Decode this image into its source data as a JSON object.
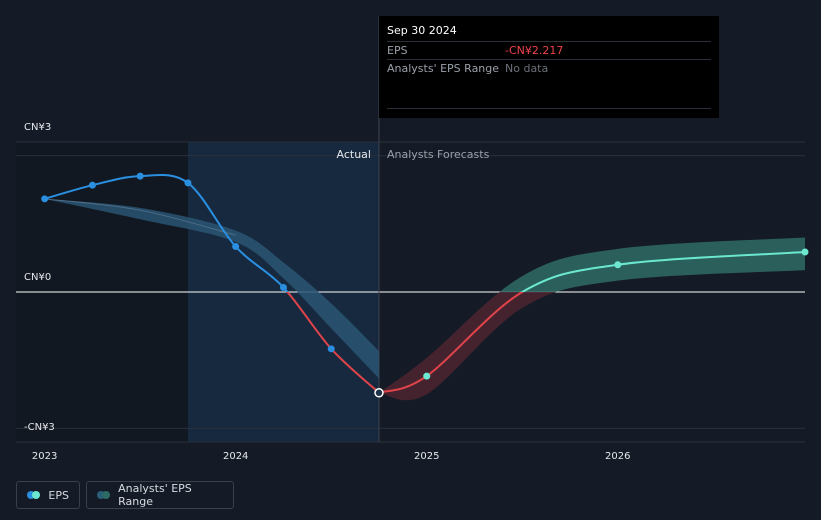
{
  "tooltip": {
    "date": "Sep 30 2024",
    "rows": [
      {
        "label": "EPS",
        "value": "-CN¥2.217"
      },
      {
        "label": "Analysts' EPS Range",
        "value": "No data"
      }
    ]
  },
  "legend": {
    "eps": "EPS",
    "range": "Analysts' EPS Range"
  },
  "colors": {
    "actual": "#2b8fe0",
    "forecast": "#6be8cf",
    "negative": "#e0444a",
    "range_band": "#2c5f6c",
    "background": "#151b26"
  },
  "chart_data": {
    "type": "line",
    "y_axis_labels": [
      "CN¥3",
      "CN¥0",
      "-CN¥3"
    ],
    "y_ticks": [
      3,
      0,
      -3
    ],
    "x_ticks": [
      "2023",
      "2024",
      "2025",
      "2026"
    ],
    "x_tick_values": [
      2023,
      2024,
      2025,
      2026
    ],
    "xlim": [
      2022.85,
      2026.98
    ],
    "ylim": [
      -3.3,
      3.3
    ],
    "section_labels": {
      "actual": "Actual",
      "forecast": "Analysts Forecasts"
    },
    "divider_x": 2024.75,
    "highlight_range": [
      2023.75,
      2024.75
    ],
    "series": [
      {
        "name": "EPS",
        "points": [
          [
            2023.0,
            2.05
          ],
          [
            2023.25,
            2.35
          ],
          [
            2023.5,
            2.55
          ],
          [
            2023.75,
            2.4
          ],
          [
            2024.0,
            1.0
          ],
          [
            2024.25,
            0.1
          ],
          [
            2024.5,
            -1.25
          ],
          [
            2024.75,
            -2.217
          ]
        ]
      },
      {
        "name": "EPS forecast",
        "points": [
          [
            2024.75,
            -2.217
          ],
          [
            2025.0,
            -1.85
          ],
          [
            2025.5,
            0.0
          ],
          [
            2026.0,
            0.6
          ],
          [
            2026.98,
            0.88
          ]
        ]
      },
      {
        "name": "Analysts' EPS Range",
        "upper": [
          [
            2023.0,
            2.05
          ],
          [
            2023.5,
            1.85
          ],
          [
            2024.0,
            1.35
          ],
          [
            2024.25,
            0.65
          ],
          [
            2024.5,
            -0.25
          ],
          [
            2024.75,
            -1.3
          ]
        ],
        "lower": [
          [
            2023.0,
            2.05
          ],
          [
            2023.5,
            1.6
          ],
          [
            2024.0,
            1.1
          ],
          [
            2024.25,
            0.3
          ],
          [
            2024.5,
            -0.8
          ],
          [
            2024.75,
            -1.9
          ]
        ]
      },
      {
        "name": "Analysts' EPS Range forecast",
        "upper": [
          [
            2024.75,
            -2.217
          ],
          [
            2025.0,
            -1.45
          ],
          [
            2025.5,
            0.35
          ],
          [
            2026.0,
            0.95
          ],
          [
            2026.98,
            1.2
          ]
        ],
        "lower": [
          [
            2024.75,
            -2.217
          ],
          [
            2025.0,
            -2.25
          ],
          [
            2025.5,
            -0.35
          ],
          [
            2026.0,
            0.25
          ],
          [
            2026.98,
            0.48
          ]
        ]
      }
    ],
    "forecast_markers": [
      2025.0,
      2026.0,
      2026.98
    ],
    "highlight_point": [
      2024.75,
      -2.217
    ]
  }
}
